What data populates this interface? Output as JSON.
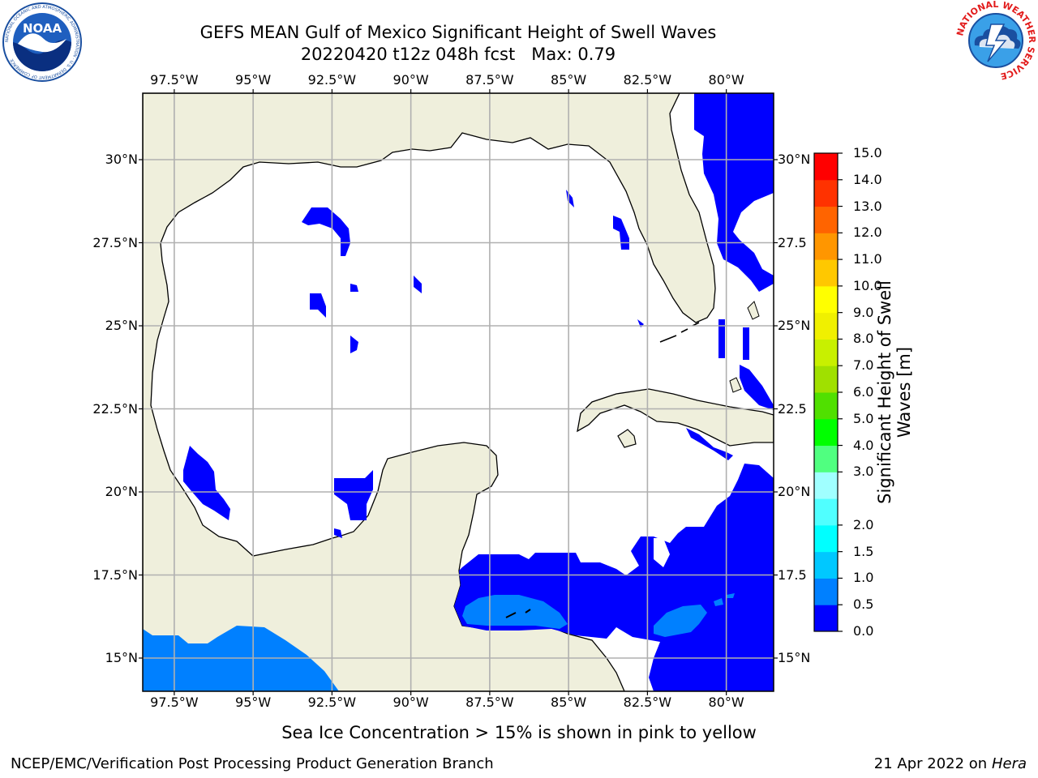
{
  "title": {
    "line1": "GEFS MEAN Gulf of Mexico Significant Height of Swell Waves",
    "line2": "20220420 t12z 048h fcst   Max: 0.79"
  },
  "map": {
    "lon_range": [
      -98.5,
      -78.5
    ],
    "lat_range": [
      14.0,
      32.0
    ],
    "lon_ticks": [
      "97.5°W",
      "95°W",
      "92.5°W",
      "90°W",
      "87.5°W",
      "85°W",
      "82.5°W",
      "80°W"
    ],
    "lat_ticks_left": [
      "30°N",
      "27.5°N",
      "25°N",
      "22.5°N",
      "20°N",
      "17.5°N",
      "15°N"
    ],
    "lat_ticks_right": [
      "30°N",
      "27.5",
      "25°N",
      "22.5",
      "20°N",
      "17.5",
      "15°N"
    ],
    "land_color": "#efefdc",
    "grid_color": "#b0b0b0"
  },
  "colorbar": {
    "label": "Significant Height of Swell Waves [m]",
    "label_line1": "Significant Height of Swell",
    "label_line2": "Waves [m]",
    "levels": [
      "0.0",
      "0.5",
      "1.0",
      "1.5",
      "2.0",
      "2.5",
      "3.0",
      "4.0",
      "5.0",
      "6.0",
      "7.0",
      "8.0",
      "9.0",
      "10.0",
      "11.0",
      "12.0",
      "13.0",
      "14.0",
      "15.0"
    ],
    "tick_labels": [
      "0.0",
      "0.5",
      "1.0",
      "1.5",
      "2.0",
      "3.0",
      "4.0",
      "5.0",
      "6.0",
      "7.0",
      "8.0",
      "9.0",
      "10.0",
      "11.0",
      "12.0",
      "13.0",
      "14.0",
      "15.0"
    ],
    "colors": [
      "#0000ff",
      "#0080ff",
      "#00c8ff",
      "#00ffff",
      "#50ffff",
      "#a0ffff",
      "#50ff80",
      "#00ff00",
      "#50e000",
      "#a0e000",
      "#c8f000",
      "#f0f000",
      "#ffff00",
      "#ffc800",
      "#ff9600",
      "#ff6400",
      "#ff3200",
      "#ff0000"
    ]
  },
  "logos": {
    "left_text": "NOAA",
    "left_ring": "NATIONAL OCEANIC AND ATMOSPHERIC ADMINISTRATION · U.S. DEPARTMENT OF COMMERCE",
    "right_ring": "NATIONAL WEATHER SERVICE"
  },
  "footer": {
    "note": "Sea Ice Concentration > 15% is shown in pink to yellow",
    "credit": "NCEP/EMC/Verification Post Processing Product Generation Branch",
    "date": "21 Apr 2022 on ",
    "host": "Hera"
  }
}
